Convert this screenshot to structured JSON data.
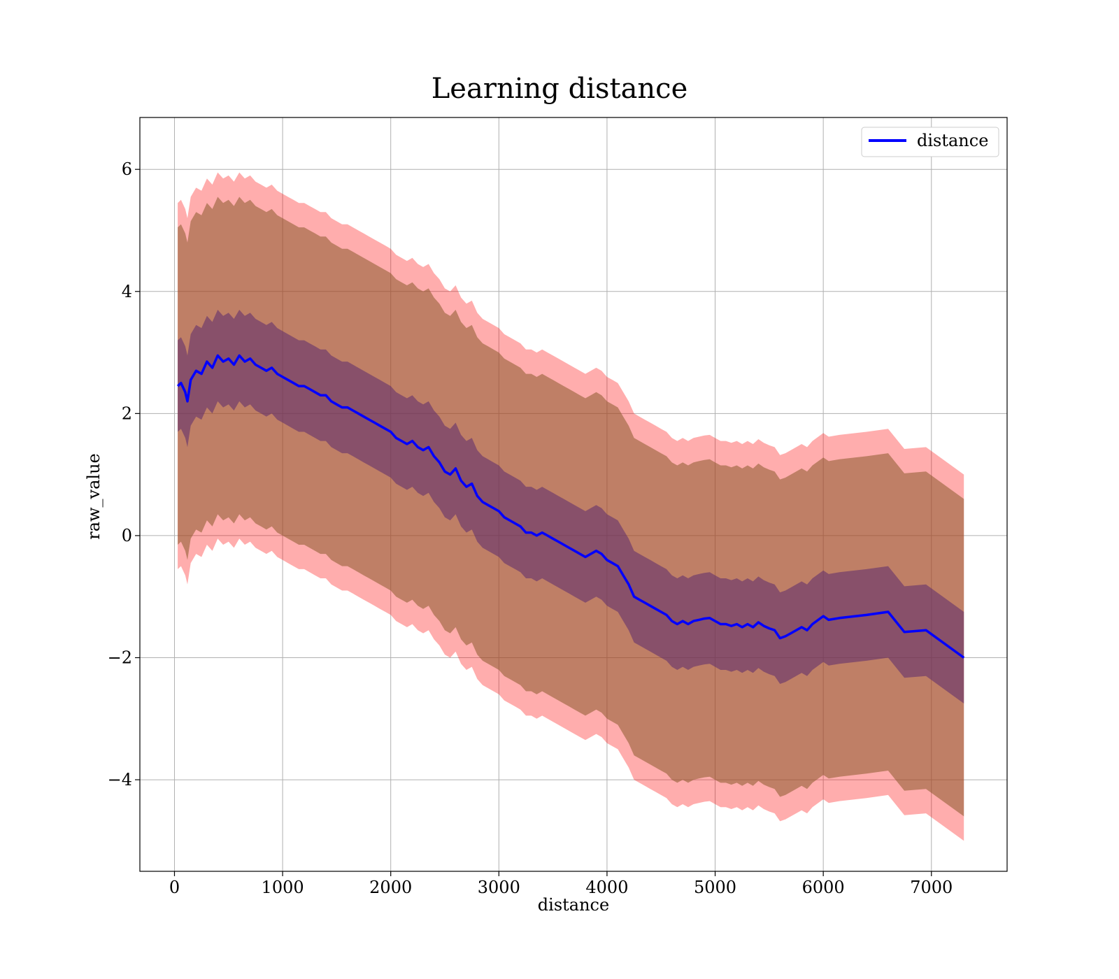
{
  "chart_data": {
    "type": "line",
    "title": "Learning distance",
    "xlabel": "distance",
    "ylabel": "raw_value",
    "xlim": [
      -320,
      7700
    ],
    "ylim": [
      -5.5,
      6.85
    ],
    "xticks": [
      0,
      1000,
      2000,
      3000,
      4000,
      5000,
      6000,
      7000
    ],
    "xtick_labels": [
      "0",
      "1000",
      "2000",
      "3000",
      "4000",
      "5000",
      "6000",
      "7000"
    ],
    "yticks": [
      -4,
      -2,
      0,
      2,
      4,
      6
    ],
    "ytick_labels": [
      "−4",
      "−2",
      "0",
      "2",
      "4",
      "6"
    ],
    "grid": true,
    "legend": {
      "position": "top-right",
      "entries": [
        "distance"
      ]
    },
    "colors": {
      "line": "#0000ff",
      "outer_band": "#ff0000",
      "mid_band": "#8b5a2b",
      "inner_band": "#5b2a6e",
      "grid": "#b0b0b0"
    },
    "series": [
      {
        "name": "distance",
        "x": [
          30,
          60,
          100,
          120,
          150,
          200,
          250,
          300,
          350,
          400,
          450,
          500,
          550,
          600,
          650,
          700,
          750,
          800,
          850,
          900,
          950,
          1000,
          1050,
          1100,
          1150,
          1200,
          1250,
          1300,
          1350,
          1400,
          1450,
          1500,
          1550,
          1600,
          1650,
          1700,
          1750,
          1800,
          1850,
          1900,
          1950,
          2000,
          2050,
          2100,
          2150,
          2200,
          2250,
          2300,
          2350,
          2400,
          2450,
          2500,
          2550,
          2600,
          2650,
          2700,
          2750,
          2800,
          2850,
          2900,
          2950,
          3000,
          3050,
          3100,
          3150,
          3200,
          3250,
          3300,
          3350,
          3400,
          3450,
          3500,
          3550,
          3600,
          3650,
          3700,
          3750,
          3800,
          3850,
          3900,
          3950,
          4000,
          4050,
          4100,
          4150,
          4200,
          4250,
          4300,
          4350,
          4400,
          4450,
          4500,
          4550,
          4600,
          4650,
          4700,
          4750,
          4800,
          4850,
          4900,
          4950,
          5000,
          5050,
          5100,
          5150,
          5200,
          5250,
          5300,
          5350,
          5400,
          5450,
          5500,
          5550,
          5600,
          5650,
          5700,
          5800,
          5850,
          5900,
          6000,
          6050,
          6150,
          6400,
          6600,
          6750,
          6950,
          7300
        ],
        "y": [
          2.45,
          2.5,
          2.35,
          2.2,
          2.55,
          2.7,
          2.65,
          2.85,
          2.75,
          2.95,
          2.85,
          2.9,
          2.8,
          2.95,
          2.85,
          2.9,
          2.8,
          2.75,
          2.7,
          2.75,
          2.65,
          2.6,
          2.55,
          2.5,
          2.45,
          2.45,
          2.4,
          2.35,
          2.3,
          2.3,
          2.2,
          2.15,
          2.1,
          2.1,
          2.05,
          2.0,
          1.95,
          1.9,
          1.85,
          1.8,
          1.75,
          1.7,
          1.6,
          1.55,
          1.5,
          1.55,
          1.45,
          1.4,
          1.45,
          1.3,
          1.2,
          1.05,
          1.0,
          1.1,
          0.9,
          0.8,
          0.85,
          0.65,
          0.55,
          0.5,
          0.45,
          0.4,
          0.3,
          0.25,
          0.2,
          0.15,
          0.05,
          0.05,
          0.0,
          0.05,
          0.0,
          -0.05,
          -0.1,
          -0.15,
          -0.2,
          -0.25,
          -0.3,
          -0.35,
          -0.3,
          -0.25,
          -0.3,
          -0.4,
          -0.45,
          -0.5,
          -0.65,
          -0.8,
          -1.0,
          -1.05,
          -1.1,
          -1.15,
          -1.2,
          -1.25,
          -1.3,
          -1.4,
          -1.45,
          -1.4,
          -1.45,
          -1.4,
          -1.38,
          -1.36,
          -1.35,
          -1.4,
          -1.45,
          -1.45,
          -1.48,
          -1.45,
          -1.5,
          -1.45,
          -1.5,
          -1.42,
          -1.48,
          -1.52,
          -1.55,
          -1.68,
          -1.65,
          -1.6,
          -1.5,
          -1.55,
          -1.45,
          -1.32,
          -1.38,
          -1.35,
          -1.3,
          -1.25,
          -1.58,
          -1.55,
          -2.0
        ]
      }
    ],
    "bands": [
      {
        "name": "outer",
        "half_width": 3.0
      },
      {
        "name": "mid",
        "half_width": 2.6
      },
      {
        "name": "inner",
        "half_width": 0.75
      }
    ]
  }
}
